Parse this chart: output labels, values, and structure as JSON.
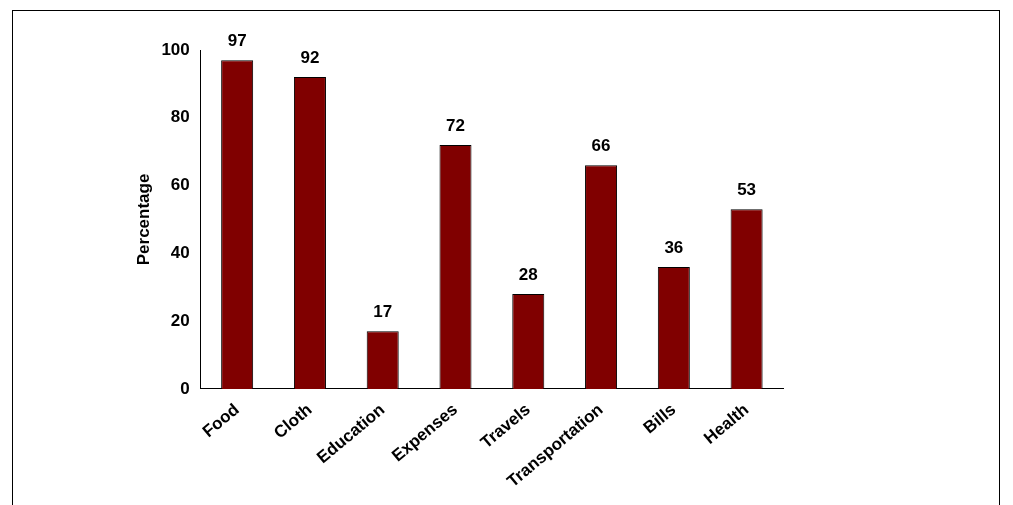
{
  "chart_data": {
    "type": "bar",
    "ylabel": "Percentage",
    "categories": [
      "Food",
      "Cloth",
      "Education",
      "Expenses",
      "Travels",
      "Transportation",
      "Bills",
      "Health"
    ],
    "values": [
      97,
      92,
      17,
      72,
      28,
      66,
      36,
      53
    ],
    "color": "#800000",
    "ylim": [
      0,
      100
    ],
    "yticks": [
      0,
      20,
      40,
      60,
      80,
      100
    ],
    "grid": false,
    "legend": false,
    "data_labels": true
  }
}
